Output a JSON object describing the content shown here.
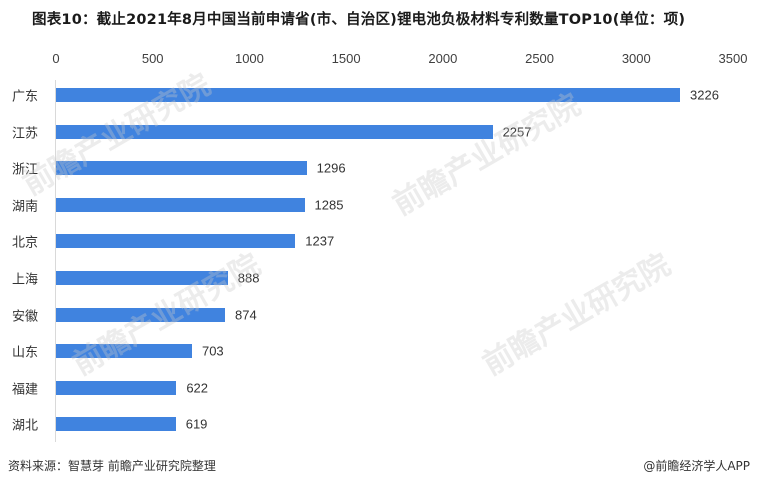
{
  "title": "图表10：截止2021年8月中国当前申请省(市、自治区)锂电池负极材料专利数量TOP10(单位：项)",
  "source": "资料来源：智慧芽 前瞻产业研究院整理",
  "credit": "@前瞻经济学人APP",
  "watermark": "前瞻产业研究院",
  "axis": {
    "ticks": [
      "0",
      "500",
      "1000",
      "1500",
      "2000",
      "2500",
      "3000",
      "3500"
    ]
  },
  "rows": [
    {
      "label": "广东",
      "value": "3226"
    },
    {
      "label": "江苏",
      "value": "2257"
    },
    {
      "label": "浙江",
      "value": "1296"
    },
    {
      "label": "湖南",
      "value": "1285"
    },
    {
      "label": "北京",
      "value": "1237"
    },
    {
      "label": "上海",
      "value": "888"
    },
    {
      "label": "安徽",
      "value": "874"
    },
    {
      "label": "山东",
      "value": "703"
    },
    {
      "label": "福建",
      "value": "622"
    },
    {
      "label": "湖北",
      "value": "619"
    }
  ],
  "colors": {
    "bar": "#4083df"
  },
  "chart_data": {
    "type": "bar",
    "orientation": "horizontal",
    "title": "图表10：截止2021年8月中国当前申请省(市、自治区)锂电池负极材料专利数量TOP10(单位：项)",
    "categories": [
      "广东",
      "江苏",
      "浙江",
      "湖南",
      "北京",
      "上海",
      "安徽",
      "山东",
      "福建",
      "湖北"
    ],
    "values": [
      3226,
      2257,
      1296,
      1285,
      1237,
      888,
      874,
      703,
      622,
      619
    ],
    "xlabel": "",
    "ylabel": "",
    "xlim": [
      0,
      3500
    ],
    "xticks": [
      0,
      500,
      1000,
      1500,
      2000,
      2500,
      3000,
      3500
    ],
    "axis_position": "top",
    "grid": false,
    "legend": null,
    "data_labels": true,
    "unit": "项"
  }
}
